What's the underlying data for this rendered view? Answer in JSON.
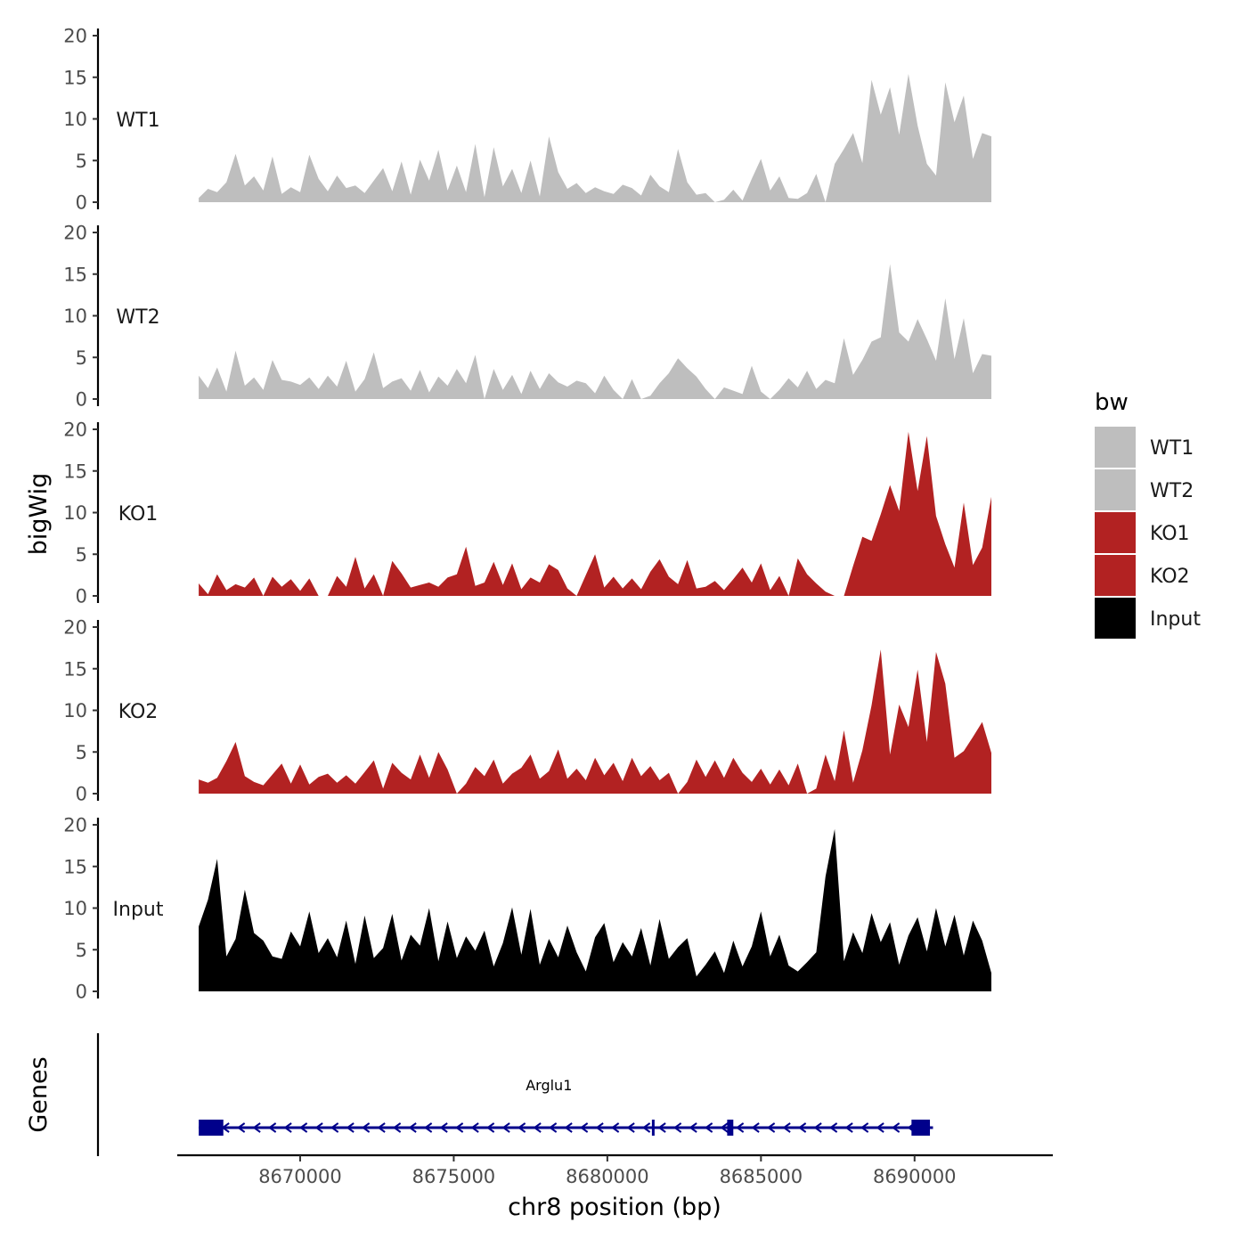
{
  "chart_data": {
    "type": "area",
    "title": "",
    "xlabel": "chr8 position (bp)",
    "ylabel": "bigWig",
    "gene_track_label": "Genes",
    "xlim": [
      8666000,
      8694500
    ],
    "x_region": [
      8666700,
      8692500
    ],
    "x_ticks": [
      8670000,
      8675000,
      8680000,
      8685000,
      8690000
    ],
    "x_tick_labels": [
      "8670000",
      "8675000",
      "8680000",
      "8685000",
      "8690000"
    ],
    "ylim": [
      0,
      20
    ],
    "y_ticks": [
      0,
      5,
      10,
      15,
      20
    ],
    "y_tick_labels": [
      "0",
      "5",
      "10",
      "15",
      "20"
    ],
    "grid": false,
    "legend": {
      "title": "bw",
      "position": "right",
      "entries": [
        {
          "label": "WT1",
          "color": "#bebebe"
        },
        {
          "label": "WT2",
          "color": "#bebebe"
        },
        {
          "label": "KO1",
          "color": "#b22222"
        },
        {
          "label": "KO2",
          "color": "#b22222"
        },
        {
          "label": "Input",
          "color": "#000000"
        }
      ]
    },
    "series": [
      {
        "name": "WT1",
        "color": "#bebebe",
        "x": [
          8666700,
          8667000,
          8667300,
          8667600,
          8667900,
          8668200,
          8668500,
          8668800,
          8669100,
          8669400,
          8669700,
          8670000,
          8670300,
          8670600,
          8670900,
          8671200,
          8671500,
          8671800,
          8672100,
          8672400,
          8672700,
          8673000,
          8673300,
          8673600,
          8673900,
          8674200,
          8674500,
          8674800,
          8675100,
          8675400,
          8675700,
          8676000,
          8676300,
          8676600,
          8676900,
          8677200,
          8677500,
          8677800,
          8678100,
          8678400,
          8678700,
          8679000,
          8679300,
          8679600,
          8679900,
          8680200,
          8680500,
          8680800,
          8681100,
          8681400,
          8681700,
          8682000,
          8682300,
          8682600,
          8682900,
          8683200,
          8683500,
          8683800,
          8684100,
          8684400,
          8684700,
          8685000,
          8685300,
          8685600,
          8685900,
          8686200,
          8686500,
          8686800,
          8687100,
          8687400,
          8687700,
          8688000,
          8688300,
          8688600,
          8688900,
          8689200,
          8689500,
          8689800,
          8690100,
          8690400,
          8690700,
          8691000,
          8691300,
          8691600,
          8691900,
          8692200,
          8692500
        ],
        "values": [
          0.5,
          1.6,
          1.2,
          2.4,
          5.8,
          2.0,
          3.1,
          1.4,
          5.5,
          1.0,
          1.8,
          1.2,
          5.7,
          2.8,
          1.3,
          3.2,
          1.7,
          2.0,
          1.1,
          2.6,
          4.1,
          1.3,
          4.9,
          0.9,
          5.1,
          2.6,
          6.3,
          1.4,
          4.4,
          1.2,
          7.0,
          0.6,
          6.6,
          1.9,
          4.0,
          1.1,
          5.0,
          0.7,
          7.9,
          3.6,
          1.6,
          2.3,
          1.1,
          1.8,
          1.3,
          1.0,
          2.1,
          1.7,
          0.8,
          3.3,
          1.9,
          1.2,
          6.4,
          2.4,
          0.9,
          1.1,
          0.0,
          0.3,
          1.5,
          0.2,
          2.8,
          5.2,
          1.4,
          3.1,
          0.5,
          0.4,
          1.1,
          3.4,
          0.0,
          4.6,
          6.4,
          8.3,
          4.7,
          14.7,
          10.5,
          13.8,
          8.1,
          15.4,
          9.2,
          4.6,
          3.2,
          14.4,
          9.6,
          12.8,
          5.2,
          8.3,
          7.9
        ]
      },
      {
        "name": "WT2",
        "color": "#bebebe",
        "x": [
          8666700,
          8667000,
          8667300,
          8667600,
          8667900,
          8668200,
          8668500,
          8668800,
          8669100,
          8669400,
          8669700,
          8670000,
          8670300,
          8670600,
          8670900,
          8671200,
          8671500,
          8671800,
          8672100,
          8672400,
          8672700,
          8673000,
          8673300,
          8673600,
          8673900,
          8674200,
          8674500,
          8674800,
          8675100,
          8675400,
          8675700,
          8676000,
          8676300,
          8676600,
          8676900,
          8677200,
          8677500,
          8677800,
          8678100,
          8678400,
          8678700,
          8679000,
          8679300,
          8679600,
          8679900,
          8680200,
          8680500,
          8680800,
          8681100,
          8681400,
          8681700,
          8682000,
          8682300,
          8682600,
          8682900,
          8683200,
          8683500,
          8683800,
          8684100,
          8684400,
          8684700,
          8685000,
          8685300,
          8685600,
          8685900,
          8686200,
          8686500,
          8686800,
          8687100,
          8687400,
          8687700,
          8688000,
          8688300,
          8688600,
          8688900,
          8689200,
          8689500,
          8689800,
          8690100,
          8690400,
          8690700,
          8691000,
          8691300,
          8691600,
          8691900,
          8692200,
          8692500
        ],
        "values": [
          2.8,
          1.3,
          3.8,
          0.9,
          5.8,
          1.6,
          2.6,
          1.1,
          4.7,
          2.3,
          2.1,
          1.7,
          2.6,
          1.2,
          2.8,
          1.5,
          4.6,
          0.9,
          2.4,
          5.6,
          1.3,
          2.1,
          2.5,
          1.0,
          3.5,
          0.8,
          2.7,
          1.6,
          3.6,
          1.9,
          5.3,
          0.0,
          3.6,
          1.1,
          2.9,
          0.6,
          3.4,
          1.2,
          3.1,
          2.0,
          1.5,
          2.2,
          1.9,
          0.7,
          2.8,
          1.1,
          0.0,
          2.4,
          0.0,
          0.4,
          1.9,
          3.1,
          4.9,
          3.7,
          2.7,
          1.2,
          0.0,
          1.4,
          1.0,
          0.6,
          4.0,
          0.9,
          0.0,
          1.1,
          2.5,
          1.4,
          3.4,
          1.2,
          2.3,
          1.9,
          7.3,
          2.9,
          4.7,
          6.9,
          7.4,
          16.2,
          8.0,
          6.9,
          9.6,
          7.2,
          4.6,
          12.1,
          4.8,
          9.7,
          3.1,
          5.4,
          5.2
        ]
      },
      {
        "name": "KO1",
        "color": "#b22222",
        "x": [
          8666700,
          8667000,
          8667300,
          8667600,
          8667900,
          8668200,
          8668500,
          8668800,
          8669100,
          8669400,
          8669700,
          8670000,
          8670300,
          8670600,
          8670900,
          8671200,
          8671500,
          8671800,
          8672100,
          8672400,
          8672700,
          8673000,
          8673300,
          8673600,
          8673900,
          8674200,
          8674500,
          8674800,
          8675100,
          8675400,
          8675700,
          8676000,
          8676300,
          8676600,
          8676900,
          8677200,
          8677500,
          8677800,
          8678100,
          8678400,
          8678700,
          8679000,
          8679300,
          8679600,
          8679900,
          8680200,
          8680500,
          8680800,
          8681100,
          8681400,
          8681700,
          8682000,
          8682300,
          8682600,
          8682900,
          8683200,
          8683500,
          8683800,
          8684100,
          8684400,
          8684700,
          8685000,
          8685300,
          8685600,
          8685900,
          8686200,
          8686500,
          8686800,
          8687100,
          8687400,
          8687700,
          8688000,
          8688300,
          8688600,
          8688900,
          8689200,
          8689500,
          8689800,
          8690100,
          8690400,
          8690700,
          8691000,
          8691300,
          8691600,
          8691900,
          8692200,
          8692500
        ],
        "values": [
          1.5,
          0.2,
          2.6,
          0.7,
          1.4,
          1.0,
          2.2,
          0.0,
          2.3,
          1.1,
          2.0,
          0.6,
          2.1,
          0.0,
          0.0,
          2.4,
          1.1,
          4.7,
          0.9,
          2.6,
          0.0,
          4.2,
          2.7,
          1.0,
          1.3,
          1.6,
          1.1,
          2.2,
          2.6,
          5.9,
          1.2,
          1.6,
          4.1,
          1.3,
          3.9,
          0.8,
          2.2,
          1.6,
          3.8,
          3.1,
          0.9,
          0.0,
          2.5,
          5.0,
          1.0,
          2.3,
          0.9,
          2.1,
          0.8,
          2.9,
          4.4,
          2.3,
          1.4,
          4.3,
          0.9,
          1.1,
          1.8,
          0.7,
          2.0,
          3.4,
          1.6,
          3.9,
          0.7,
          2.4,
          0.0,
          4.5,
          2.6,
          1.5,
          0.5,
          0.0,
          0.0,
          3.6,
          7.1,
          6.6,
          9.8,
          13.3,
          10.2,
          19.7,
          12.6,
          19.2,
          9.6,
          6.2,
          3.4,
          11.2,
          3.7,
          5.8,
          11.9
        ]
      },
      {
        "name": "KO2",
        "color": "#b22222",
        "x": [
          8666700,
          8667000,
          8667300,
          8667600,
          8667900,
          8668200,
          8668500,
          8668800,
          8669100,
          8669400,
          8669700,
          8670000,
          8670300,
          8670600,
          8670900,
          8671200,
          8671500,
          8671800,
          8672100,
          8672400,
          8672700,
          8673000,
          8673300,
          8673600,
          8673900,
          8674200,
          8674500,
          8674800,
          8675100,
          8675400,
          8675700,
          8676000,
          8676300,
          8676600,
          8676900,
          8677200,
          8677500,
          8677800,
          8678100,
          8678400,
          8678700,
          8679000,
          8679300,
          8679600,
          8679900,
          8680200,
          8680500,
          8680800,
          8681100,
          8681400,
          8681700,
          8682000,
          8682300,
          8682600,
          8682900,
          8683200,
          8683500,
          8683800,
          8684100,
          8684400,
          8684700,
          8685000,
          8685300,
          8685600,
          8685900,
          8686200,
          8686500,
          8686800,
          8687100,
          8687400,
          8687700,
          8688000,
          8688300,
          8688600,
          8688900,
          8689200,
          8689500,
          8689800,
          8690100,
          8690400,
          8690700,
          8691000,
          8691300,
          8691600,
          8691900,
          8692200,
          8692500
        ],
        "values": [
          1.7,
          1.3,
          1.9,
          3.9,
          6.2,
          2.1,
          1.4,
          1.0,
          2.3,
          3.6,
          1.2,
          3.5,
          1.1,
          2.0,
          2.4,
          1.3,
          2.2,
          1.2,
          2.6,
          4.0,
          0.6,
          3.7,
          2.5,
          1.7,
          4.7,
          1.9,
          5.0,
          2.9,
          0.0,
          1.2,
          3.2,
          2.1,
          4.1,
          1.2,
          2.4,
          3.1,
          4.7,
          1.8,
          2.7,
          5.3,
          1.8,
          3.0,
          1.6,
          4.3,
          2.2,
          3.7,
          1.5,
          4.3,
          2.1,
          3.3,
          1.6,
          2.5,
          0.0,
          1.4,
          4.1,
          2.0,
          4.0,
          1.9,
          4.3,
          2.5,
          1.4,
          3.0,
          1.1,
          2.9,
          1.0,
          3.6,
          0.0,
          0.6,
          4.7,
          1.5,
          7.6,
          1.3,
          5.2,
          10.6,
          17.3,
          4.7,
          10.7,
          8.0,
          14.9,
          6.2,
          17.0,
          13.2,
          4.3,
          5.1,
          6.8,
          8.6,
          4.9
        ]
      },
      {
        "name": "Input",
        "color": "#000000",
        "x": [
          8666700,
          8667000,
          8667300,
          8667600,
          8667900,
          8668200,
          8668500,
          8668800,
          8669100,
          8669400,
          8669700,
          8670000,
          8670300,
          8670600,
          8670900,
          8671200,
          8671500,
          8671800,
          8672100,
          8672400,
          8672700,
          8673000,
          8673300,
          8673600,
          8673900,
          8674200,
          8674500,
          8674800,
          8675100,
          8675400,
          8675700,
          8676000,
          8676300,
          8676600,
          8676900,
          8677200,
          8677500,
          8677800,
          8678100,
          8678400,
          8678700,
          8679000,
          8679300,
          8679600,
          8679900,
          8680200,
          8680500,
          8680800,
          8681100,
          8681400,
          8681700,
          8682000,
          8682300,
          8682600,
          8682900,
          8683200,
          8683500,
          8683800,
          8684100,
          8684400,
          8684700,
          8685000,
          8685300,
          8685600,
          8685900,
          8686200,
          8686500,
          8686800,
          8687100,
          8687400,
          8687700,
          8688000,
          8688300,
          8688600,
          8688900,
          8689200,
          8689500,
          8689800,
          8690100,
          8690400,
          8690700,
          8691000,
          8691300,
          8691600,
          8691900,
          8692200,
          8692500
        ],
        "values": [
          7.8,
          11.0,
          15.9,
          4.2,
          6.3,
          12.2,
          7.0,
          6.1,
          4.2,
          3.9,
          7.2,
          5.4,
          9.6,
          4.6,
          6.4,
          4.1,
          8.5,
          3.3,
          9.1,
          4.0,
          5.2,
          9.3,
          3.7,
          6.8,
          5.5,
          10.0,
          3.6,
          8.4,
          4.0,
          6.6,
          4.9,
          7.3,
          3.0,
          5.8,
          10.1,
          4.4,
          9.9,
          3.2,
          6.3,
          4.1,
          7.9,
          4.7,
          2.4,
          6.5,
          8.2,
          3.5,
          5.9,
          4.2,
          7.6,
          3.1,
          8.7,
          3.9,
          5.3,
          6.4,
          1.8,
          3.2,
          4.8,
          2.2,
          6.1,
          3.0,
          5.4,
          9.6,
          4.2,
          6.8,
          3.1,
          2.4,
          3.5,
          4.7,
          13.8,
          19.5,
          3.6,
          7.1,
          4.6,
          9.4,
          5.9,
          8.3,
          3.2,
          6.7,
          8.9,
          4.8,
          10.0,
          5.4,
          9.2,
          4.3,
          8.5,
          6.1,
          2.2
        ]
      }
    ],
    "gene": {
      "name": "Arglu1",
      "strand": "-",
      "color": "#00008b",
      "start": 8666700,
      "end": 8690600,
      "exons": [
        [
          8666700,
          8667500
        ],
        [
          8681450,
          8681500
        ],
        [
          8683900,
          8684100
        ],
        [
          8689900,
          8690500
        ]
      ]
    }
  }
}
